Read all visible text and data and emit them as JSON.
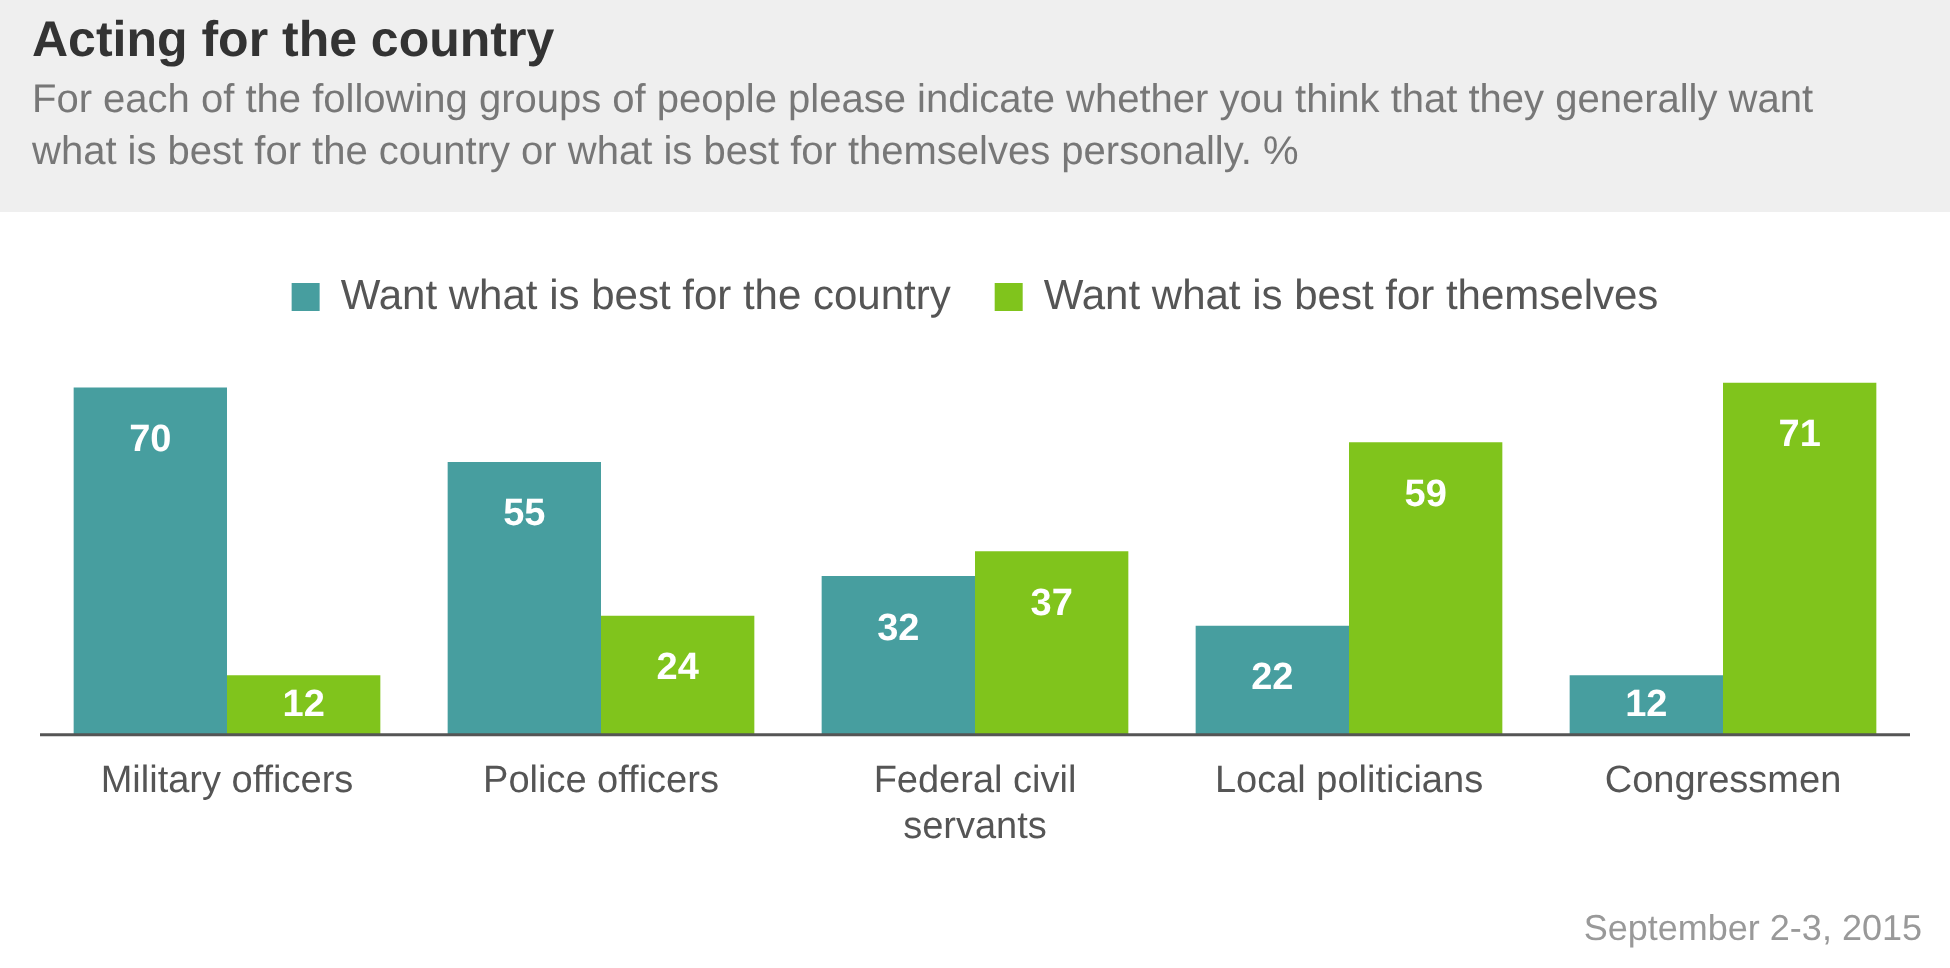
{
  "chart_data": {
    "type": "bar",
    "title": "Acting for the country",
    "subtitle": "For each of the following groups of people please indicate whether you think that they generally want what is best for the country or what is best for themselves personally. %",
    "categories": [
      "Military officers",
      "Police officers",
      "Federal civil servants",
      "Local politicians",
      "Congressmen"
    ],
    "series": [
      {
        "name": "Want what is best for the country",
        "color": "#479e9f",
        "values": [
          70,
          55,
          32,
          22,
          12
        ]
      },
      {
        "name": "Want what is best for themselves",
        "color": "#80c41c",
        "values": [
          12,
          24,
          37,
          59,
          71
        ]
      }
    ],
    "data_labels": true,
    "legend": "top",
    "grid": false,
    "annotations": [
      "September 2-3, 2015"
    ]
  }
}
